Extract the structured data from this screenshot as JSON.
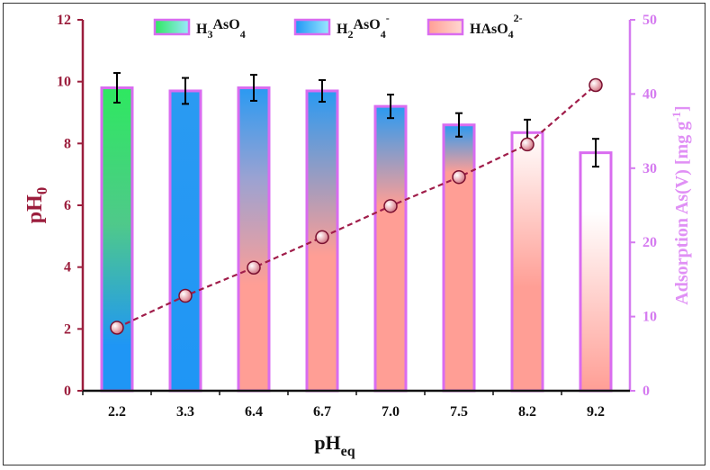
{
  "chart_data": {
    "type": "bar",
    "title": "",
    "categories": [
      "2.2",
      "3.3",
      "6.4",
      "6.7",
      "7.0",
      "7.5",
      "8.2",
      "9.2"
    ],
    "xlabel": {
      "main": "pH",
      "sub": "eq"
    },
    "ylabel": {
      "main": "pH",
      "sub": "0"
    },
    "ylim": [
      0,
      12
    ],
    "yticks": [
      "0",
      "2",
      "4",
      "6",
      "8",
      "10",
      "12"
    ],
    "bars": {
      "name": "pH0",
      "values": [
        9.8,
        9.7,
        9.8,
        9.7,
        9.2,
        8.6,
        8.35,
        7.7
      ],
      "errors": [
        0.48,
        0.42,
        0.42,
        0.35,
        0.38,
        0.38,
        0.42,
        0.45
      ],
      "gradient_stops": [
        [
          [
            "#2ee860",
            0.0
          ],
          [
            "#4fc98a",
            0.45
          ],
          [
            "#1f96f5",
            0.85
          ]
        ],
        [
          [
            "#2a9af2",
            0.0
          ],
          [
            "#1f96f5",
            1.0
          ]
        ],
        [
          [
            "#2a9af2",
            0.0
          ],
          [
            "#9ba2d2",
            0.3
          ],
          [
            "#ff9e95",
            0.65
          ]
        ],
        [
          [
            "#2a9af2",
            0.0
          ],
          [
            "#ff9e95",
            0.55
          ]
        ],
        [
          [
            "#2a9af2",
            0.0
          ],
          [
            "#ff9e95",
            0.35
          ]
        ],
        [
          [
            "#2a9af2",
            0.0
          ],
          [
            "#ff9e95",
            0.18
          ]
        ],
        [
          [
            "#ffffff",
            0.0
          ],
          [
            "#ff9e95",
            0.6
          ]
        ],
        [
          [
            "#ffffff",
            0.0
          ],
          [
            "#ffffff",
            0.25
          ],
          [
            "#ff9e95",
            1.0
          ]
        ]
      ],
      "edge_color": "#d96cf0"
    },
    "line": {
      "name": "Adsorption As(V)",
      "values": [
        8.5,
        12.8,
        16.6,
        20.7,
        24.9,
        28.8,
        33.2,
        41.2
      ],
      "color": "#a01d4a",
      "marker_color": "#c96e7d"
    },
    "y2label": "Adsorption As(V) [mg g",
    "y2label_sup": "-1",
    "y2label_end": "]",
    "y2lim": [
      0,
      50
    ],
    "y2ticks": [
      "0",
      "10",
      "20",
      "30",
      "40",
      "50"
    ],
    "legend": [
      {
        "label": "H",
        "sub1": "3",
        "mid": "AsO",
        "sub2": "4",
        "sup": "",
        "from": "#2ee860",
        "to": "#9be8ff"
      },
      {
        "label": "H",
        "sub1": "2",
        "mid": "AsO",
        "sub2": "4",
        "sup": "-",
        "from": "#1f96f5",
        "to": "#9be8ff"
      },
      {
        "label": "HAsO",
        "sub1": "",
        "mid": "",
        "sub2": "4",
        "sup": "2-",
        "from": "#ff9e95",
        "to": "#ffd7d2"
      }
    ],
    "left_axis_color": "#9b1d3c",
    "right_axis_color": "#d57bf0"
  }
}
